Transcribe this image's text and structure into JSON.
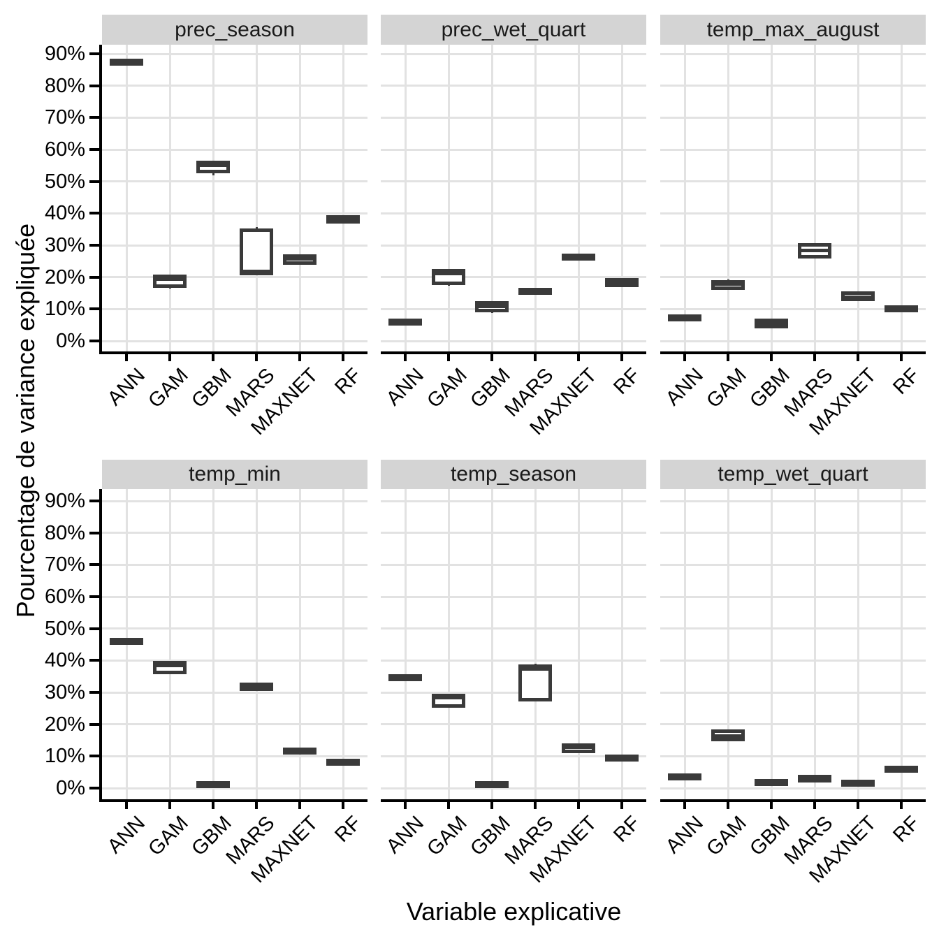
{
  "figure_title": "",
  "axes": {
    "x_title": "Variable explicative",
    "y_title": "Pourcentage de variance expliquée"
  },
  "colors": {
    "background": "#ffffff",
    "box_stroke": "#3a3a3a",
    "box_fill": "#ffffff",
    "gridline": "#e2e2e2",
    "strip_bg": "#d4d4d4",
    "strip_text": "#1a1a1a",
    "axis_line": "#000000",
    "tick_text": "#000000"
  },
  "chart_data": {
    "type": "boxplot",
    "facets": "2 rows x 3 cols",
    "grid": "on",
    "legend_position": "none",
    "xlabel": "Variable explicative",
    "ylabel": "Pourcentage de variance expliquée",
    "categories": [
      "ANN",
      "GAM",
      "GBM",
      "MARS",
      "MAXNET",
      "RF"
    ],
    "y_ticks": [
      "90%",
      "80%",
      "70%",
      "60%",
      "50%",
      "40%",
      "30%",
      "20%",
      "10%",
      "0%"
    ],
    "y_unit": "%",
    "ylim": [
      0,
      93
    ],
    "stat_order": [
      "min",
      "q1",
      "median",
      "q3",
      "max"
    ],
    "panels": [
      {
        "title": "prec_season",
        "boxes": [
          [
            87.0,
            87.2,
            87.5,
            87.9,
            88.1
          ],
          [
            16.4,
            17.2,
            19.4,
            20.2,
            20.4
          ],
          [
            52.0,
            53.3,
            55.0,
            55.8,
            56.2
          ],
          [
            20.8,
            21.2,
            21.8,
            34.6,
            35.7
          ],
          [
            23.9,
            24.6,
            25.7,
            26.6,
            26.9
          ],
          [
            37.0,
            37.4,
            38.1,
            38.8,
            39.0
          ]
        ]
      },
      {
        "title": "prec_wet_quart",
        "boxes": [
          [
            5.7,
            5.9,
            6.1,
            6.3,
            6.4
          ],
          [
            17.4,
            18.2,
            21.2,
            21.9,
            22.1
          ],
          [
            8.8,
            9.6,
            10.8,
            11.9,
            12.1
          ],
          [
            15.1,
            15.4,
            15.7,
            16.0,
            16.1
          ],
          [
            25.6,
            25.9,
            26.3,
            26.7,
            26.9
          ],
          [
            17.0,
            17.5,
            18.4,
            19.0,
            19.2
          ]
        ]
      },
      {
        "title": "temp_max_august",
        "boxes": [
          [
            7.0,
            7.2,
            7.4,
            7.6,
            7.7
          ],
          [
            16.3,
            16.7,
            17.8,
            18.5,
            19.2
          ],
          [
            4.2,
            4.5,
            5.3,
            6.4,
            6.6
          ],
          [
            25.9,
            26.4,
            28.3,
            30.0,
            30.3
          ],
          [
            12.9,
            13.1,
            13.7,
            14.8,
            15.0
          ],
          [
            9.2,
            9.6,
            10.1,
            10.5,
            10.7
          ]
        ]
      },
      {
        "title": "temp_min",
        "boxes": [
          [
            45.5,
            45.8,
            46.1,
            46.4,
            46.6
          ],
          [
            35.9,
            36.3,
            38.5,
            39.1,
            39.3
          ],
          [
            0.8,
            1.0,
            1.2,
            1.5,
            1.6
          ],
          [
            30.8,
            31.1,
            31.9,
            32.5,
            33.1
          ],
          [
            11.2,
            11.4,
            11.7,
            12.0,
            12.1
          ],
          [
            7.5,
            7.8,
            8.1,
            8.5,
            8.6
          ]
        ]
      },
      {
        "title": "temp_season",
        "boxes": [
          [
            34.2,
            34.4,
            34.7,
            35.0,
            35.1
          ],
          [
            25.2,
            25.8,
            28.3,
            29.0,
            29.1
          ],
          [
            0.9,
            1.1,
            1.3,
            1.6,
            1.7
          ],
          [
            27.4,
            27.8,
            37.3,
            38.0,
            38.9
          ],
          [
            11.4,
            11.7,
            12.9,
            13.4,
            13.6
          ],
          [
            8.9,
            9.2,
            9.5,
            9.8,
            9.9
          ]
        ]
      },
      {
        "title": "temp_wet_quart",
        "boxes": [
          [
            3.2,
            3.4,
            3.6,
            3.9,
            4.0
          ],
          [
            15.0,
            15.3,
            16.3,
            17.8,
            18.5
          ],
          [
            1.5,
            1.7,
            1.9,
            2.2,
            2.3
          ],
          [
            1.9,
            2.3,
            2.9,
            3.4,
            3.7
          ],
          [
            1.2,
            1.4,
            1.6,
            1.9,
            2.0
          ],
          [
            5.4,
            5.7,
            6.0,
            6.3,
            6.4
          ]
        ]
      }
    ]
  }
}
